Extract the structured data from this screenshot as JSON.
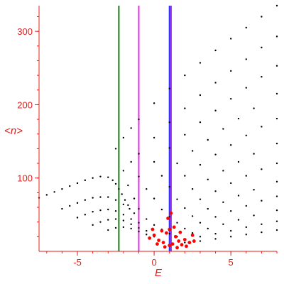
{
  "chart_data": {
    "type": "scatter",
    "title": "",
    "xlabel": "E",
    "ylabel": "<n>",
    "xlim": [
      -7.5,
      8
    ],
    "ylim": [
      0,
      335
    ],
    "x_ticks": [
      -5,
      0,
      5
    ],
    "x_tick_labels": [
      "-5",
      "0",
      "5"
    ],
    "y_ticks": [
      100,
      200,
      300
    ],
    "y_tick_labels": [
      "100",
      "200",
      "300"
    ],
    "grid": false,
    "legend": "none",
    "axis_color": "#e0201c",
    "vertical_lines": [
      {
        "x": -2.3,
        "color": "#1a7a1a"
      },
      {
        "x": -1.0,
        "color": "#e030e0"
      },
      {
        "x": 1.0,
        "color": "#2a2aff"
      },
      {
        "x": 1.1,
        "color": "#8a2be2"
      }
    ],
    "series": [
      {
        "color": "#000000",
        "points": [
          [
            -7.5,
            73
          ],
          [
            -7,
            77
          ],
          [
            -6.5,
            81
          ],
          [
            -6,
            85
          ],
          [
            -5.5,
            89
          ],
          [
            -5,
            93
          ],
          [
            -4.5,
            97
          ],
          [
            -4,
            100
          ],
          [
            -3.5,
            102
          ],
          [
            -3,
            101
          ],
          [
            -2.7,
            97
          ],
          [
            -2.5,
            92
          ],
          [
            -2.3,
            85
          ],
          [
            -2.1,
            78
          ],
          [
            -1.9,
            70
          ],
          [
            -1.7,
            63
          ]
        ]
      },
      {
        "color": "#000000",
        "points": [
          [
            -6,
            58
          ],
          [
            -5.5,
            62
          ],
          [
            -5,
            66
          ],
          [
            -4.5,
            70
          ],
          [
            -4,
            73
          ],
          [
            -3.5,
            74
          ],
          [
            -3,
            74
          ],
          [
            -2.5,
            70
          ],
          [
            -2,
            64
          ],
          [
            -1.6,
            58
          ],
          [
            -1.3,
            52
          ]
        ]
      },
      {
        "color": "#000000",
        "points": [
          [
            -5,
            46
          ],
          [
            -4.5,
            50
          ],
          [
            -4,
            54
          ],
          [
            -3.5,
            56
          ],
          [
            -3,
            57
          ],
          [
            -2.5,
            55
          ],
          [
            -2,
            50
          ],
          [
            -1.5,
            44
          ],
          [
            -1,
            39
          ]
        ]
      },
      {
        "color": "#000000",
        "points": [
          [
            -4,
            36
          ],
          [
            -3.5,
            40
          ],
          [
            -3,
            43
          ],
          [
            -2.5,
            44
          ],
          [
            -2,
            42
          ],
          [
            -1.5,
            37
          ],
          [
            -1,
            32
          ],
          [
            -0.5,
            28
          ]
        ]
      },
      {
        "color": "#000000",
        "points": [
          [
            -3,
            29
          ],
          [
            -2.5,
            32
          ],
          [
            -2,
            33
          ],
          [
            -1.5,
            31
          ],
          [
            -1,
            27
          ],
          [
            -0.5,
            23
          ],
          [
            0,
            20
          ]
        ]
      },
      {
        "color": "#000000",
        "points": [
          [
            -2.5,
            140
          ],
          [
            -2,
            155
          ],
          [
            -1.5,
            168
          ],
          [
            -1,
            180
          ],
          [
            0,
            202
          ],
          [
            1,
            222
          ],
          [
            2,
            240
          ],
          [
            3,
            257
          ],
          [
            4,
            274
          ],
          [
            5,
            290
          ],
          [
            6,
            305
          ],
          [
            7,
            320
          ],
          [
            8,
            335
          ]
        ]
      },
      {
        "color": "#000000",
        "points": [
          [
            -2,
            110
          ],
          [
            -1.5,
            122
          ],
          [
            -1,
            133
          ],
          [
            0,
            155
          ],
          [
            1,
            176
          ],
          [
            2,
            195
          ],
          [
            3,
            213
          ],
          [
            4,
            230
          ],
          [
            5,
            246
          ],
          [
            6,
            262
          ],
          [
            7,
            278
          ],
          [
            8,
            293
          ]
        ]
      },
      {
        "color": "#000000",
        "points": [
          [
            -1.7,
            90
          ],
          [
            -1,
            102
          ],
          [
            0,
            122
          ],
          [
            1,
            141
          ],
          [
            2,
            159
          ],
          [
            3,
            176
          ],
          [
            4,
            192
          ],
          [
            5,
            208
          ],
          [
            6,
            223
          ],
          [
            7,
            238
          ],
          [
            8,
            253
          ]
        ]
      },
      {
        "color": "#000000",
        "points": [
          [
            -1.3,
            72
          ],
          [
            -0.5,
            85
          ],
          [
            0.5,
            103
          ],
          [
            1.5,
            120
          ],
          [
            2.5,
            137
          ],
          [
            3.5,
            152
          ],
          [
            4.5,
            167
          ],
          [
            5.5,
            181
          ],
          [
            6.5,
            195
          ],
          [
            8,
            215
          ]
        ]
      },
      {
        "color": "#000000",
        "points": [
          [
            -1,
            58
          ],
          [
            0,
            72
          ],
          [
            1,
            88
          ],
          [
            2,
            103
          ],
          [
            3,
            118
          ],
          [
            4,
            132
          ],
          [
            5,
            145
          ],
          [
            6,
            158
          ],
          [
            7,
            170
          ],
          [
            8,
            181
          ]
        ]
      },
      {
        "color": "#000000",
        "points": [
          [
            -0.5,
            44
          ],
          [
            0.5,
            57
          ],
          [
            1.5,
            71
          ],
          [
            2.5,
            85
          ],
          [
            3.5,
            98
          ],
          [
            4.5,
            110
          ],
          [
            5.5,
            122
          ],
          [
            6.5,
            133
          ],
          [
            8,
            147
          ]
        ]
      },
      {
        "color": "#000000",
        "points": [
          [
            0,
            36
          ],
          [
            1,
            47
          ],
          [
            2,
            59
          ],
          [
            3,
            71
          ],
          [
            4,
            82
          ],
          [
            5,
            93
          ],
          [
            6,
            103
          ],
          [
            7,
            112
          ],
          [
            8,
            120
          ]
        ]
      },
      {
        "color": "#000000",
        "points": [
          [
            0.5,
            30
          ],
          [
            1.5,
            39
          ],
          [
            2.5,
            48
          ],
          [
            3.5,
            58
          ],
          [
            4.5,
            67
          ],
          [
            5.5,
            76
          ],
          [
            6.5,
            84
          ],
          [
            8,
            95
          ]
        ]
      },
      {
        "color": "#000000",
        "points": [
          [
            1,
            24
          ],
          [
            2,
            31
          ],
          [
            3,
            39
          ],
          [
            4,
            47
          ],
          [
            5,
            55
          ],
          [
            6,
            62
          ],
          [
            7,
            69
          ],
          [
            8,
            75
          ]
        ]
      },
      {
        "color": "#000000",
        "points": [
          [
            1.5,
            20
          ],
          [
            2.5,
            25
          ],
          [
            3.5,
            31
          ],
          [
            4.5,
            37
          ],
          [
            5.5,
            43
          ],
          [
            6.5,
            49
          ],
          [
            8,
            56
          ]
        ]
      },
      {
        "color": "#000000",
        "points": [
          [
            2,
            16
          ],
          [
            3,
            20
          ],
          [
            4,
            24
          ],
          [
            5,
            28
          ],
          [
            6,
            33
          ],
          [
            7,
            37
          ],
          [
            8,
            41
          ]
        ]
      },
      {
        "color": "#000000",
        "points": [
          [
            2,
            12
          ],
          [
            3,
            14
          ],
          [
            4,
            17
          ],
          [
            5,
            20
          ],
          [
            6,
            23
          ],
          [
            7,
            26
          ],
          [
            8,
            29
          ]
        ]
      },
      {
        "color": "#ff0000",
        "points": [
          [
            -0.3,
            18
          ],
          [
            0,
            22
          ],
          [
            0.3,
            15
          ],
          [
            0.6,
            12
          ],
          [
            0.8,
            25
          ],
          [
            1,
            30
          ],
          [
            1,
            8
          ],
          [
            1.2,
            10
          ],
          [
            1.4,
            20
          ],
          [
            1.6,
            14
          ],
          [
            1.8,
            9
          ],
          [
            2,
            16
          ],
          [
            2.3,
            12
          ],
          [
            2.6,
            14
          ],
          [
            0.9,
            45
          ],
          [
            1.1,
            52
          ],
          [
            0.5,
            28
          ],
          [
            1.3,
            33
          ],
          [
            0.2,
            10
          ],
          [
            0.7,
            6
          ],
          [
            1.5,
            5
          ],
          [
            2.1,
            7
          ],
          [
            -0.1,
            30
          ],
          [
            1.7,
            26
          ],
          [
            2.5,
            22
          ]
        ]
      }
    ]
  }
}
